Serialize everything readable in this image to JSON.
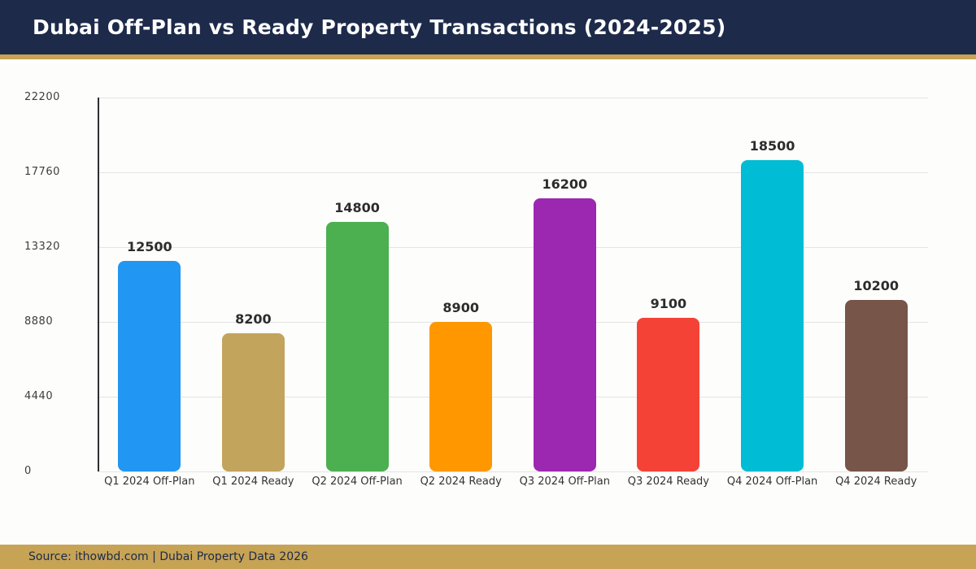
{
  "header": {
    "title": "Dubai Off-Plan vs Ready Property Transactions (2024-2025)"
  },
  "footer": {
    "source": "Source: ithowbd.com | Dubai Property Data 2026"
  },
  "theme": {
    "header_bg": "#1d2a4a",
    "accent_gold": "#c6a355",
    "page_bg": "#fdfdfc",
    "gridline_color": "#e4e4e4",
    "axis_color": "#2e2e2e"
  },
  "chart_data": {
    "type": "bar",
    "title": "Dubai Off-Plan vs Ready Property Transactions (2024-2025)",
    "categories": [
      "Q1 2024 Off-Plan",
      "Q1 2024 Ready",
      "Q2 2024 Off-Plan",
      "Q2 2024 Ready",
      "Q3 2024 Off-Plan",
      "Q3 2024 Ready",
      "Q4 2024 Off-Plan",
      "Q4 2024 Ready"
    ],
    "values": [
      12500,
      8200,
      14800,
      8900,
      16200,
      9100,
      18500,
      10200
    ],
    "bar_colors": [
      "#2196f3",
      "#c3a45c",
      "#4caf50",
      "#ff9800",
      "#9c27b0",
      "#f44336",
      "#00bcd4",
      "#775548"
    ],
    "xlabel": "",
    "ylabel": "",
    "ylim": [
      0,
      22200
    ],
    "yticks": [
      0,
      4440,
      8880,
      13320,
      17760,
      22200
    ],
    "ytick_labels": [
      "0",
      "4440",
      "8880",
      "13320",
      "17760",
      "22200"
    ],
    "grid": true,
    "legend": "none",
    "value_labels_shown": true
  }
}
